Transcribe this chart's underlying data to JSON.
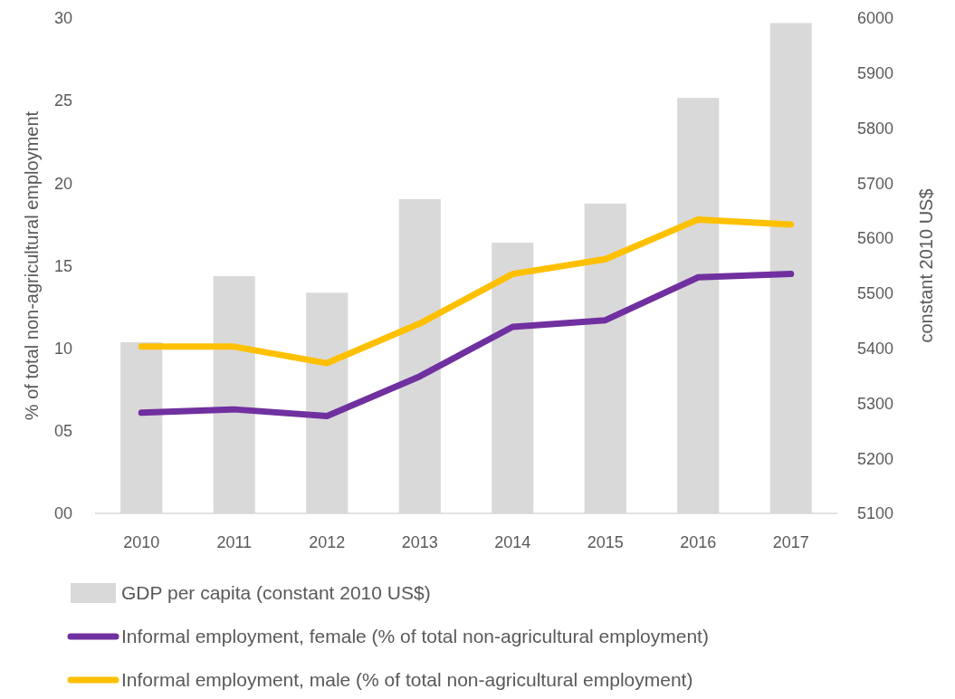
{
  "chart_data": {
    "type": "bar",
    "ylabel": "% of total non-agricultural employment",
    "y2label": "constant 2010 US$",
    "categories": [
      "2010",
      "2011",
      "2012",
      "2013",
      "2014",
      "2015",
      "2016",
      "2017"
    ],
    "series": [
      {
        "name": "GDP per capita (constant 2010 US$)",
        "axis": "y2",
        "color": "#d9d9d9",
        "values": [
          5411,
          5531,
          5501,
          5671,
          5592,
          5663,
          5855,
          5991
        ]
      },
      {
        "name": "Informal employment, female (% of total non-agricultural employment)",
        "type": "line",
        "color": "#7030a0",
        "values": [
          6.1,
          6.3,
          5.9,
          8.3,
          11.3,
          11.7,
          14.3,
          14.5
        ]
      },
      {
        "name": "Informal employment, male (% of total non-agricultural employment)",
        "type": "line",
        "color": "#ffc000",
        "values": [
          10.1,
          10.1,
          9.1,
          11.5,
          14.5,
          15.4,
          17.8,
          17.5
        ]
      }
    ],
    "ylim": [
      0,
      30
    ],
    "yticks": [
      {
        "value": 0,
        "label": "00"
      },
      {
        "value": 5,
        "label": "05"
      },
      10,
      15,
      20,
      25,
      30
    ],
    "y2lim": [
      5100,
      6000
    ],
    "y2ticks": [
      5100,
      5200,
      5300,
      5400,
      5500,
      5600,
      5700,
      5800,
      5900,
      6000
    ],
    "legend": "bottom",
    "grid": false
  }
}
